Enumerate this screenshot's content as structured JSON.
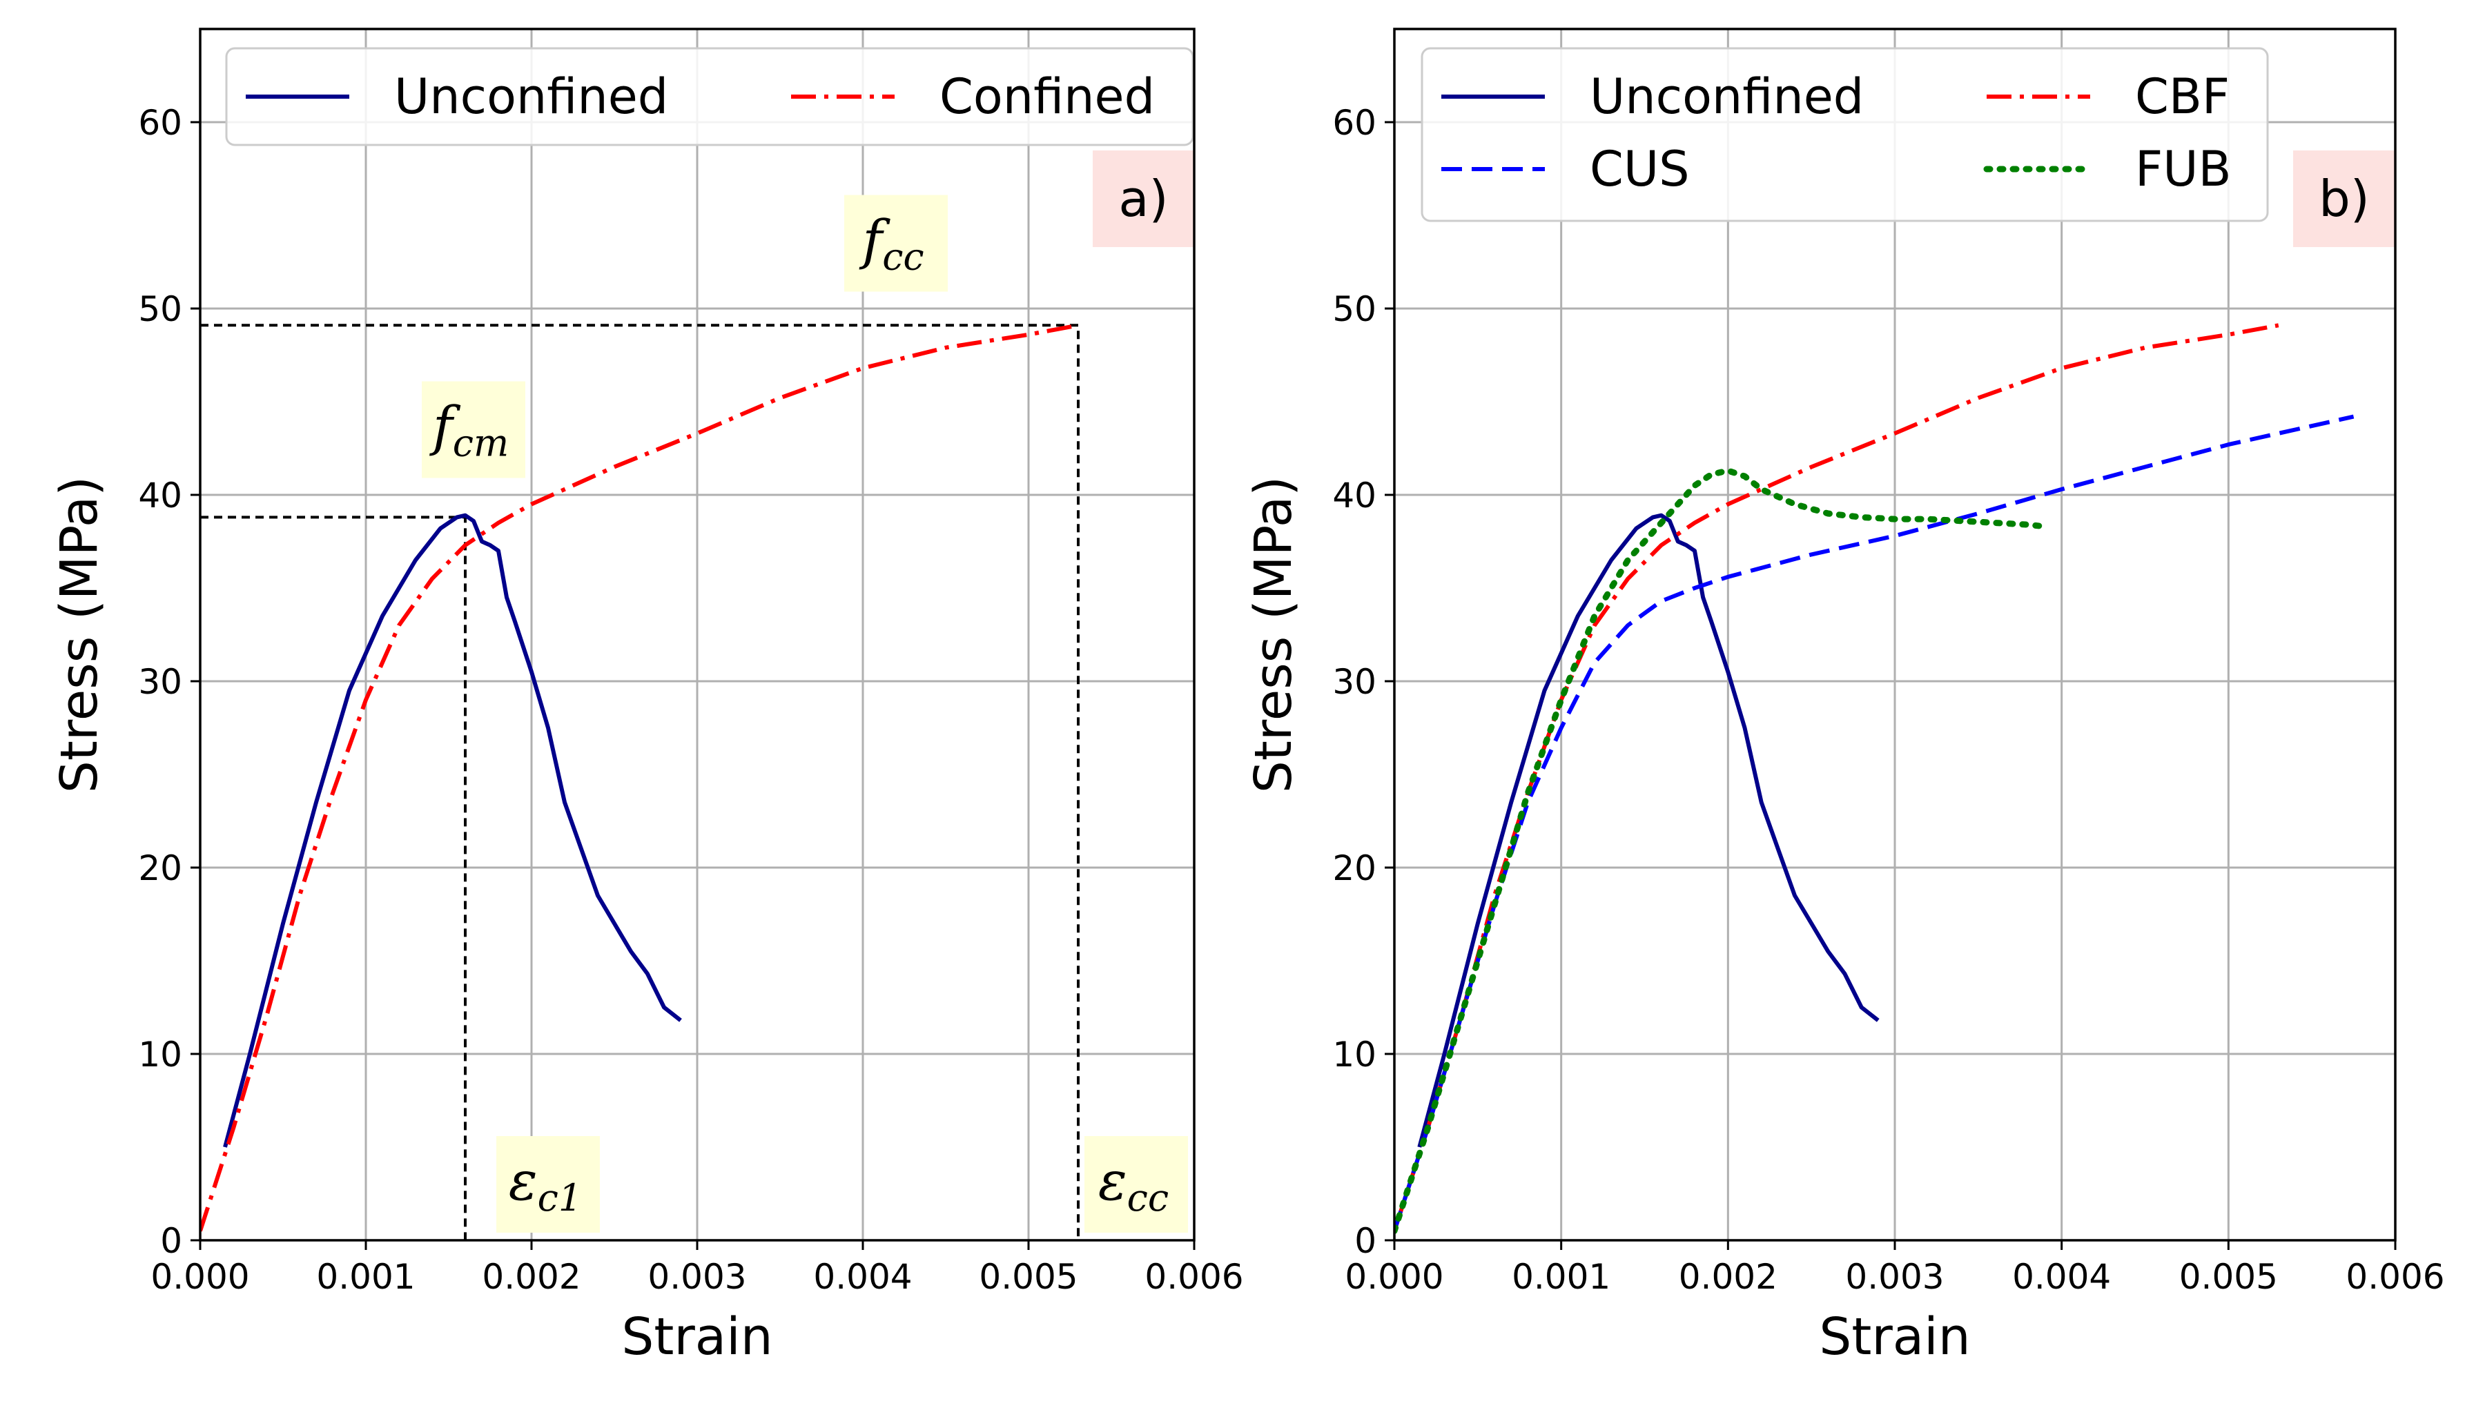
{
  "chart_data": [
    {
      "type": "line",
      "panel_label": "a)",
      "xlabel": "Strain",
      "ylabel": "Stress (MPa)",
      "xlim": [
        0,
        0.006
      ],
      "ylim": [
        0,
        65
      ],
      "xticks": [
        0,
        0.001,
        0.002,
        0.003,
        0.004,
        0.005,
        0.006
      ],
      "xtick_labels": [
        "0.000",
        "0.001",
        "0.002",
        "0.003",
        "0.004",
        "0.005",
        "0.006"
      ],
      "yticks": [
        0,
        10,
        20,
        30,
        40,
        50,
        60
      ],
      "ytick_labels": [
        "0",
        "10",
        "20",
        "30",
        "40",
        "50",
        "60"
      ],
      "grid": true,
      "legend": {
        "placement": "top",
        "columns": 2
      },
      "series": [
        {
          "name": "Unconfined",
          "color": "#00008b",
          "style": "solid",
          "x": [
            0.00015,
            0.0003,
            0.0005,
            0.0007,
            0.0009,
            0.0011,
            0.0013,
            0.00145,
            0.00155,
            0.0016,
            0.00165,
            0.0017,
            0.00175,
            0.0018,
            0.00185,
            0.0019,
            0.002,
            0.0021,
            0.0022,
            0.0023,
            0.0024,
            0.0025,
            0.0026,
            0.0027,
            0.0028,
            0.0029
          ],
          "y": [
            5,
            10,
            17,
            23.5,
            29.5,
            33.5,
            36.5,
            38.2,
            38.8,
            38.9,
            38.6,
            37.5,
            37.3,
            37.0,
            34.5,
            33.2,
            30.5,
            27.5,
            23.5,
            21.0,
            18.5,
            17.0,
            15.5,
            14.3,
            12.5,
            11.8
          ]
        },
        {
          "name": "Confined",
          "color": "#ff0000",
          "style": "dashdot",
          "x": [
            0,
            0.0002,
            0.0004,
            0.0006,
            0.0008,
            0.001,
            0.0012,
            0.0014,
            0.0016,
            0.0018,
            0.002,
            0.0025,
            0.003,
            0.0035,
            0.004,
            0.0045,
            0.005,
            0.0053
          ],
          "y": [
            0.5,
            6,
            12,
            18.5,
            24,
            29,
            33,
            35.5,
            37.3,
            38.5,
            39.5,
            41.5,
            43.3,
            45.2,
            46.8,
            47.9,
            48.6,
            49.1
          ]
        }
      ],
      "reference_lines": {
        "fcm": 38.8,
        "eps_c1": 0.0016,
        "fcc": 49.1,
        "eps_cc": 0.0053
      },
      "annotations": [
        {
          "text": "fcm",
          "symbol": "f",
          "subscript": "cm",
          "x": 0.00165,
          "y": 43.5
        },
        {
          "text": "fcc",
          "symbol": "f",
          "subscript": "cc",
          "x": 0.0042,
          "y": 53.5
        },
        {
          "text": "εc1",
          "symbol": "ε",
          "subscript": "c1",
          "x": 0.0021,
          "y": 3.0
        },
        {
          "text": "εcc",
          "symbol": "ε",
          "subscript": "cc",
          "x": 0.00565,
          "y": 3.0
        }
      ]
    },
    {
      "type": "line",
      "panel_label": "b)",
      "xlabel": "Strain",
      "ylabel": "Stress (MPa)",
      "xlim": [
        0,
        0.006
      ],
      "ylim": [
        0,
        65
      ],
      "xticks": [
        0,
        0.001,
        0.002,
        0.003,
        0.004,
        0.005,
        0.006
      ],
      "xtick_labels": [
        "0.000",
        "0.001",
        "0.002",
        "0.003",
        "0.004",
        "0.005",
        "0.006"
      ],
      "yticks": [
        0,
        10,
        20,
        30,
        40,
        50,
        60
      ],
      "ytick_labels": [
        "0",
        "10",
        "20",
        "30",
        "40",
        "50",
        "60"
      ],
      "grid": true,
      "legend": {
        "placement": "top-left",
        "columns": 2
      },
      "series": [
        {
          "name": "Unconfined",
          "color": "#00008b",
          "style": "solid",
          "x": [
            0.00015,
            0.0003,
            0.0005,
            0.0007,
            0.0009,
            0.0011,
            0.0013,
            0.00145,
            0.00155,
            0.0016,
            0.00165,
            0.0017,
            0.00175,
            0.0018,
            0.00185,
            0.0019,
            0.002,
            0.0021,
            0.0022,
            0.0023,
            0.0024,
            0.0025,
            0.0026,
            0.0027,
            0.0028,
            0.0029
          ],
          "y": [
            5,
            10,
            17,
            23.5,
            29.5,
            33.5,
            36.5,
            38.2,
            38.8,
            38.9,
            38.6,
            37.5,
            37.3,
            37.0,
            34.5,
            33.2,
            30.5,
            27.5,
            23.5,
            21.0,
            18.5,
            17.0,
            15.5,
            14.3,
            12.5,
            11.8
          ]
        },
        {
          "name": "CBF",
          "color": "#ff0000",
          "style": "dashdot",
          "x": [
            0,
            0.0002,
            0.0004,
            0.0006,
            0.0008,
            0.001,
            0.0012,
            0.0014,
            0.0016,
            0.0018,
            0.002,
            0.0025,
            0.003,
            0.0035,
            0.004,
            0.0045,
            0.005,
            0.0053
          ],
          "y": [
            0.5,
            6,
            12,
            18.5,
            24,
            29,
            33,
            35.5,
            37.3,
            38.5,
            39.5,
            41.5,
            43.3,
            45.2,
            46.8,
            47.9,
            48.6,
            49.1
          ]
        },
        {
          "name": "CUS",
          "color": "#0000ff",
          "style": "dashed",
          "x": [
            0,
            0.0002,
            0.0004,
            0.0006,
            0.0008,
            0.001,
            0.0012,
            0.0014,
            0.0016,
            0.0018,
            0.002,
            0.0025,
            0.003,
            0.0035,
            0.004,
            0.0045,
            0.005,
            0.00575
          ],
          "y": [
            0.5,
            6,
            12,
            18,
            23.5,
            27.5,
            31,
            33,
            34.3,
            35,
            35.6,
            36.8,
            37.8,
            39,
            40.3,
            41.5,
            42.7,
            44.2
          ]
        },
        {
          "name": "FUB",
          "color": "#008000",
          "style": "dotted",
          "x": [
            0,
            0.0002,
            0.0004,
            0.0006,
            0.0008,
            0.001,
            0.0012,
            0.0014,
            0.0016,
            0.0018,
            0.0019,
            0.002,
            0.0021,
            0.0022,
            0.0024,
            0.0026,
            0.0028,
            0.003,
            0.0032,
            0.0034,
            0.0036,
            0.0038,
            0.0039
          ],
          "y": [
            0.5,
            6,
            12,
            18,
            24,
            29,
            33.5,
            36.5,
            38.5,
            40.5,
            41.1,
            41.3,
            41.0,
            40.3,
            39.5,
            39.0,
            38.8,
            38.7,
            38.7,
            38.6,
            38.5,
            38.4,
            38.3
          ]
        }
      ]
    }
  ]
}
